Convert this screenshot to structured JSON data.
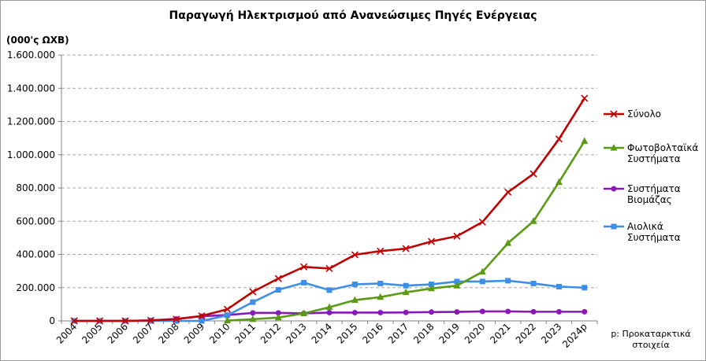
{
  "chart_data": {
    "type": "line",
    "title": "Παραγωγή Ηλεκτρισμού από Ανανεώσιμες Πηγές Ενέργειας",
    "ylabel": "(000'ς ΩΧΒ)",
    "xlabel": "",
    "categories": [
      "2004",
      "2005",
      "2006",
      "2007",
      "2008",
      "2009",
      "2010",
      "2011",
      "2012",
      "2013",
      "2014",
      "2015",
      "2016",
      "2017",
      "2018",
      "2019",
      "2020",
      "2021",
      "2022",
      "2023",
      "2024p"
    ],
    "ylim": [
      0,
      1600000
    ],
    "yticks": [
      0,
      200000,
      400000,
      600000,
      800000,
      1000000,
      1200000,
      1400000,
      1600000
    ],
    "ytick_labels": [
      "0",
      "200.000",
      "400.000",
      "600.000",
      "800.000",
      "1.000.000",
      "1.200.000",
      "1.400.000",
      "1.600.000"
    ],
    "grid": "horizontal dashed",
    "legend_position": "right",
    "series": [
      {
        "name": "Σύνολο",
        "legend_lines": [
          "Σύνολο"
        ],
        "color": "#c00000",
        "marker": "x",
        "values": [
          0,
          0,
          0,
          3000,
          10000,
          30000,
          70000,
          175000,
          255000,
          325000,
          315000,
          398000,
          420000,
          435000,
          478000,
          510000,
          595000,
          775000,
          885000,
          1095000,
          1340000
        ]
      },
      {
        "name": "Φωτοβολταϊκά Συστήματα",
        "legend_lines": [
          "Φωτοβολταϊκά",
          "Συστήματα"
        ],
        "color": "#5b9a14",
        "marker": "triangle",
        "values": [
          null,
          null,
          null,
          null,
          null,
          null,
          2000,
          10000,
          20000,
          45000,
          82000,
          125000,
          143000,
          172000,
          195000,
          212000,
          295000,
          468000,
          600000,
          835000,
          1082000
        ]
      },
      {
        "name": "Συστήματα Βιομάζας",
        "legend_lines": [
          "Συστήματα",
          "Βιομάζας"
        ],
        "color": "#8a18b8",
        "marker": "circle",
        "values": [
          0,
          0,
          0,
          3000,
          12000,
          28000,
          35000,
          48000,
          48000,
          45000,
          50000,
          50000,
          50000,
          51000,
          53000,
          54000,
          57000,
          57000,
          55000,
          55000,
          55000
        ]
      },
      {
        "name": "Αιολικά Συστήματα",
        "legend_lines": [
          "Αιολικά",
          "Συστήματα"
        ],
        "color": "#3d8ee6",
        "marker": "square",
        "values": [
          0,
          0,
          0,
          0,
          0,
          0,
          33000,
          113000,
          187000,
          230000,
          185000,
          220000,
          225000,
          212000,
          220000,
          237000,
          237000,
          242000,
          225000,
          206000,
          200000
        ]
      }
    ],
    "note": [
      "p: Προκαταρκτικά",
      "στοιχεία"
    ]
  }
}
